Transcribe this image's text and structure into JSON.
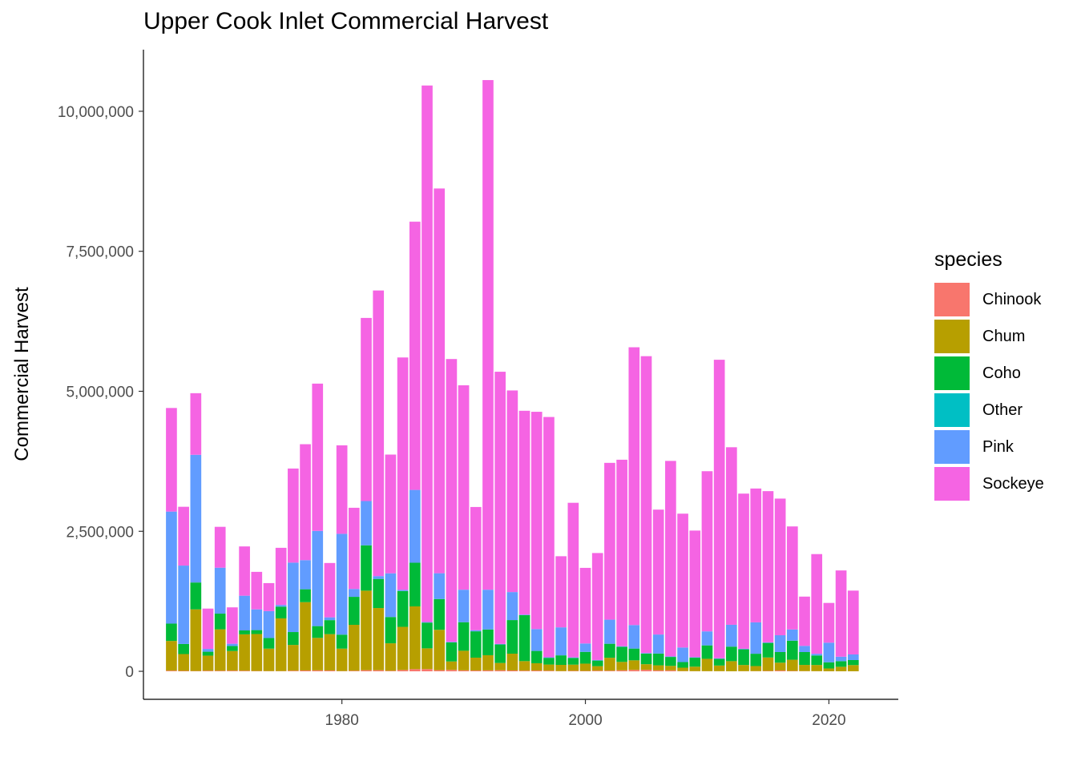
{
  "chart_data": {
    "type": "bar",
    "stacked": true,
    "title": "Upper Cook Inlet Commercial Harvest",
    "xlabel": "",
    "ylabel": "Commercial Harvest",
    "ylim": [
      -500000,
      11100000
    ],
    "xlim": [
      1963.7,
      2025.7
    ],
    "yticks": [
      0,
      2500000,
      5000000,
      7500000,
      10000000
    ],
    "ytick_labels": [
      "0",
      "2,500,000",
      "5,000,000",
      "7,500,000",
      "10,000,000"
    ],
    "xticks": [
      1980,
      2000,
      2020
    ],
    "xtick_labels": [
      "1980",
      "2000",
      "2020"
    ],
    "grid": false,
    "legend": {
      "title": "species",
      "position": "right",
      "entries": [
        "Chinook",
        "Chum",
        "Coho",
        "Other",
        "Pink",
        "Sockeye"
      ]
    },
    "colors": {
      "Chinook": "#F8766D",
      "Chum": "#B79F00",
      "Coho": "#00BA38",
      "Other": "#00BFC4",
      "Pink": "#619CFF",
      "Sockeye": "#F564E3"
    },
    "x": [
      1966,
      1967,
      1968,
      1969,
      1970,
      1971,
      1972,
      1973,
      1974,
      1975,
      1976,
      1977,
      1978,
      1979,
      1980,
      1981,
      1982,
      1983,
      1984,
      1985,
      1986,
      1987,
      1988,
      1989,
      1990,
      1991,
      1992,
      1993,
      1994,
      1995,
      1996,
      1997,
      1998,
      1999,
      2000,
      2001,
      2002,
      2003,
      2004,
      2005,
      2006,
      2007,
      2008,
      2009,
      2010,
      2011,
      2012,
      2013,
      2014,
      2015,
      2016,
      2017,
      2018,
      2019,
      2020,
      2021,
      2022
    ],
    "series": [
      {
        "name": "Chinook",
        "values": [
          12000,
          8000,
          6000,
          10000,
          10000,
          12000,
          10000,
          6000,
          5000,
          5000,
          11000,
          15000,
          17000,
          14000,
          5000,
          10000,
          20000,
          20000,
          10000,
          24000,
          39000,
          40000,
          21000,
          26000,
          17000,
          14000,
          17000,
          19000,
          15000,
          12000,
          14000,
          11000,
          5000,
          9000,
          7000,
          12000,
          12000,
          18000,
          26000,
          27000,
          17000,
          17000,
          5000,
          3000,
          3000,
          3000,
          1000,
          3000,
          4000,
          7000,
          14000,
          7000,
          4000,
          3000,
          1000,
          1000,
          1000
        ]
      },
      {
        "name": "Chum",
        "values": [
          530000,
          300000,
          1100000,
          270000,
          740000,
          350000,
          650000,
          660000,
          400000,
          940000,
          460000,
          1220000,
          580000,
          650000,
          400000,
          820000,
          1420000,
          1110000,
          490000,
          770000,
          1120000,
          370000,
          720000,
          150000,
          350000,
          230000,
          270000,
          130000,
          300000,
          170000,
          130000,
          110000,
          110000,
          110000,
          130000,
          80000,
          230000,
          150000,
          170000,
          100000,
          90000,
          80000,
          60000,
          80000,
          220000,
          100000,
          180000,
          110000,
          90000,
          240000,
          140000,
          200000,
          110000,
          110000,
          50000,
          80000,
          110000
        ]
      },
      {
        "name": "Coho",
        "values": [
          310000,
          180000,
          480000,
          70000,
          280000,
          90000,
          70000,
          70000,
          190000,
          210000,
          230000,
          230000,
          210000,
          250000,
          250000,
          500000,
          810000,
          520000,
          470000,
          640000,
          780000,
          460000,
          550000,
          340000,
          510000,
          470000,
          460000,
          330000,
          600000,
          820000,
          220000,
          120000,
          170000,
          120000,
          210000,
          100000,
          250000,
          270000,
          210000,
          190000,
          210000,
          160000,
          100000,
          160000,
          240000,
          120000,
          260000,
          280000,
          220000,
          260000,
          190000,
          340000,
          230000,
          170000,
          110000,
          100000,
          90000
        ]
      },
      {
        "name": "Other",
        "values": [
          0,
          0,
          0,
          0,
          0,
          0,
          0,
          0,
          0,
          0,
          0,
          0,
          0,
          0,
          0,
          0,
          0,
          0,
          0,
          0,
          0,
          0,
          0,
          0,
          0,
          0,
          0,
          0,
          0,
          0,
          0,
          0,
          0,
          0,
          0,
          0,
          0,
          0,
          0,
          0,
          0,
          0,
          0,
          0,
          0,
          0,
          0,
          0,
          0,
          0,
          0,
          0,
          0,
          0,
          0,
          0,
          0
        ]
      },
      {
        "name": "Pink",
        "values": [
          2000000,
          1400000,
          2280000,
          50000,
          820000,
          40000,
          620000,
          370000,
          480000,
          30000,
          1240000,
          520000,
          1700000,
          50000,
          1800000,
          140000,
          790000,
          50000,
          780000,
          20000,
          1300000,
          10000,
          460000,
          10000,
          580000,
          20000,
          710000,
          10000,
          500000,
          10000,
          390000,
          10000,
          500000,
          10000,
          150000,
          10000,
          430000,
          10000,
          420000,
          10000,
          340000,
          10000,
          260000,
          10000,
          250000,
          10000,
          390000,
          10000,
          560000,
          10000,
          300000,
          200000,
          110000,
          30000,
          350000,
          80000,
          100000
        ]
      },
      {
        "name": "Sockeye",
        "values": [
          1850000,
          1050000,
          1100000,
          720000,
          730000,
          650000,
          880000,
          670000,
          500000,
          1020000,
          1680000,
          2070000,
          2630000,
          970000,
          1580000,
          1450000,
          3270000,
          5100000,
          2120000,
          4150000,
          4790000,
          9580000,
          6870000,
          5050000,
          3650000,
          2200000,
          9100000,
          4860000,
          3600000,
          3640000,
          3880000,
          4290000,
          1270000,
          2760000,
          1350000,
          1910000,
          2800000,
          3330000,
          4960000,
          5300000,
          2230000,
          3490000,
          2390000,
          2260000,
          2860000,
          5330000,
          3170000,
          2770000,
          2390000,
          2700000,
          2440000,
          1840000,
          880000,
          1780000,
          710000,
          1540000,
          1140000
        ]
      }
    ]
  }
}
